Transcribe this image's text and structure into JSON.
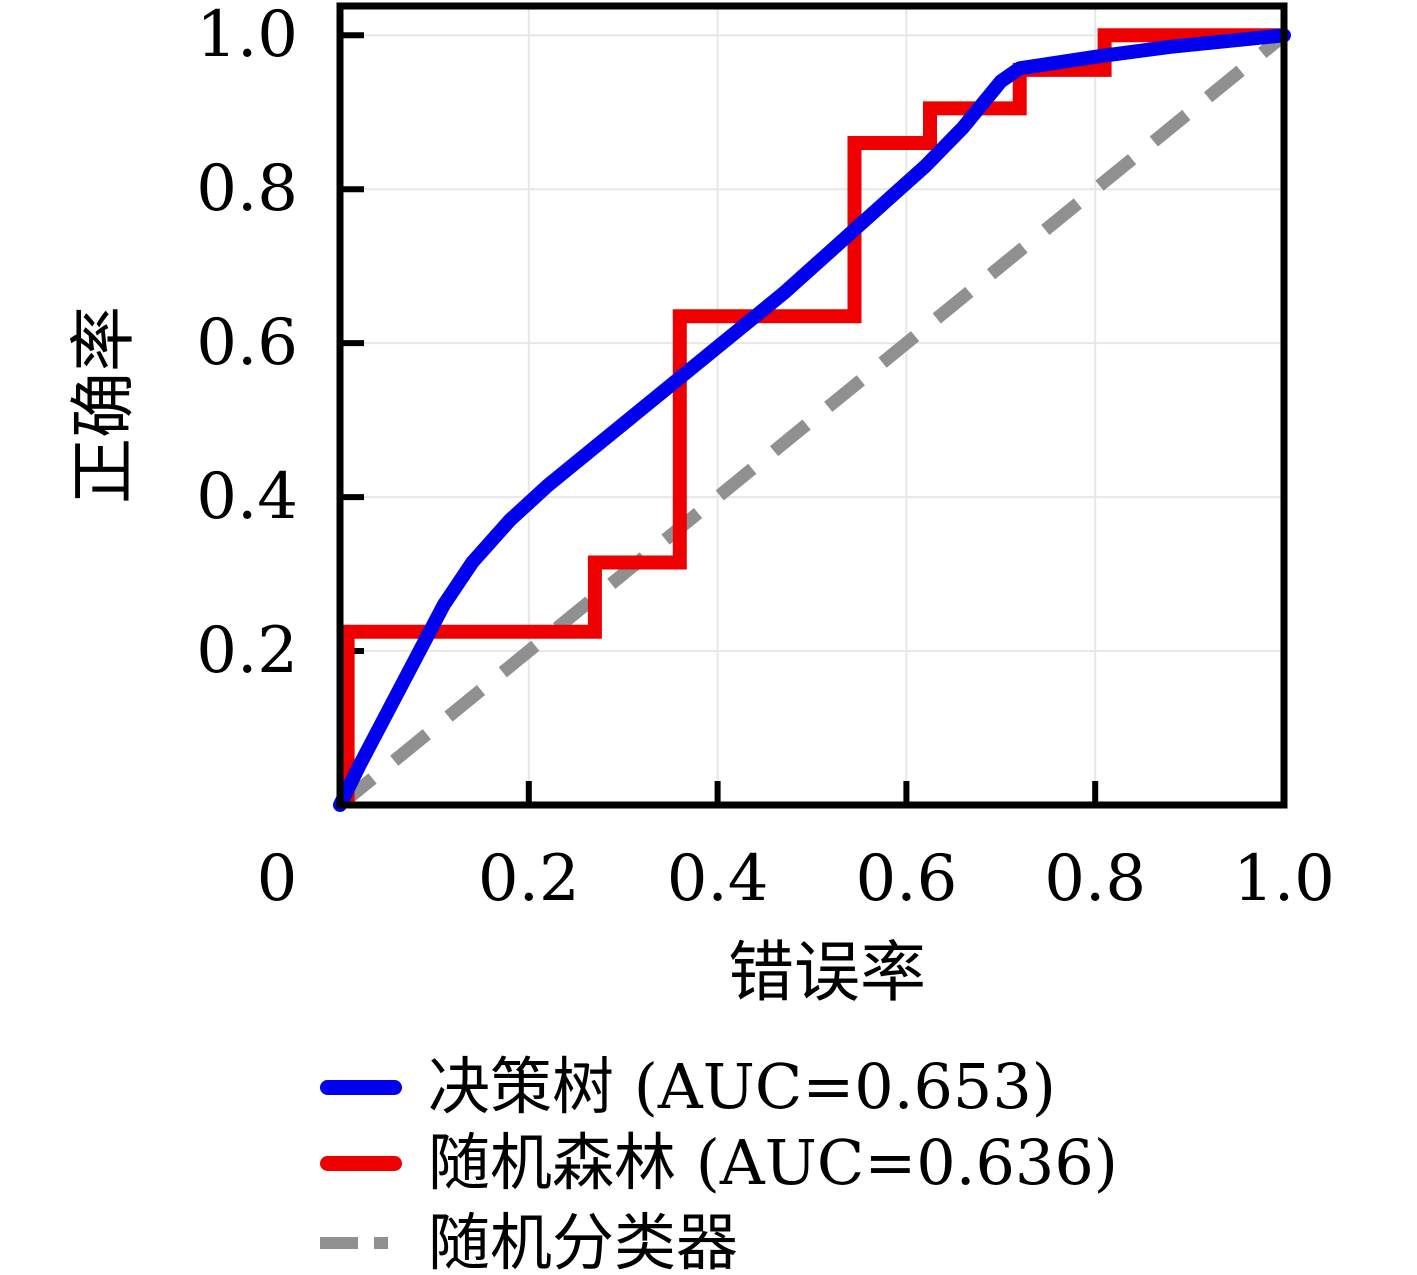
{
  "figure": {
    "background": "#ffffff",
    "axis_color": "#000000",
    "grid_color": "#e7e7e7",
    "text_color": "#000000"
  },
  "chart_data": {
    "type": "line",
    "title": "",
    "xlabel": "错误率",
    "ylabel": "正确率",
    "xlim": [
      0,
      1.0
    ],
    "ylim": [
      0,
      1.038
    ],
    "grid": true,
    "legend_position": "below-left",
    "x_ticks": [
      {
        "label": "0",
        "value": 0,
        "dx": -63
      },
      {
        "label": "0.2",
        "value": 0.2,
        "dx": 0
      },
      {
        "label": "0.4",
        "value": 0.4,
        "dx": 0
      },
      {
        "label": "0.6",
        "value": 0.6,
        "dx": 0
      },
      {
        "label": "0.8",
        "value": 0.8,
        "dx": 0
      },
      {
        "label": "1.0",
        "value": 1.0,
        "dx": 0
      }
    ],
    "y_ticks": [
      {
        "label": "0.2",
        "value": 0.2
      },
      {
        "label": "0.4",
        "value": 0.4
      },
      {
        "label": "0.6",
        "value": 0.6
      },
      {
        "label": "0.8",
        "value": 0.8
      },
      {
        "label": "1.0",
        "value": 1.0
      }
    ],
    "series": [
      {
        "id": "decision-tree",
        "label": "决策树 (AUC=0.653)",
        "auc": "0.653",
        "color": "#0000ee",
        "line_style": "solid",
        "shape": "smooth",
        "points": [
          [
            0,
            0
          ],
          [
            0.02,
            0.05
          ],
          [
            0.05,
            0.12
          ],
          [
            0.08,
            0.19
          ],
          [
            0.11,
            0.26
          ],
          [
            0.14,
            0.315
          ],
          [
            0.18,
            0.37
          ],
          [
            0.22,
            0.415
          ],
          [
            0.27,
            0.465
          ],
          [
            0.32,
            0.515
          ],
          [
            0.37,
            0.565
          ],
          [
            0.42,
            0.615
          ],
          [
            0.47,
            0.665
          ],
          [
            0.52,
            0.72
          ],
          [
            0.57,
            0.775
          ],
          [
            0.62,
            0.83
          ],
          [
            0.66,
            0.88
          ],
          [
            0.7,
            0.94
          ],
          [
            0.72,
            0.957
          ],
          [
            0.8,
            0.972
          ],
          [
            0.88,
            0.985
          ],
          [
            1.0,
            1.0
          ]
        ]
      },
      {
        "id": "random-forest",
        "label": "随机森林 (AUC=0.636)",
        "auc": "0.636",
        "color": "#ee0000",
        "line_style": "solid",
        "shape": "step",
        "points": [
          [
            0.008,
            0
          ],
          [
            0.008,
            0.225
          ],
          [
            0.27,
            0.225
          ],
          [
            0.27,
            0.315
          ],
          [
            0.36,
            0.315
          ],
          [
            0.36,
            0.635
          ],
          [
            0.545,
            0.635
          ],
          [
            0.545,
            0.86
          ],
          [
            0.625,
            0.86
          ],
          [
            0.625,
            0.905
          ],
          [
            0.72,
            0.905
          ],
          [
            0.72,
            0.955
          ],
          [
            0.81,
            0.955
          ],
          [
            0.81,
            1.0
          ],
          [
            1.0,
            1.0
          ]
        ]
      },
      {
        "id": "random-classifier",
        "label": "随机分类器",
        "auc": null,
        "color": "#909090",
        "line_style": "dashed",
        "shape": "straight",
        "points": [
          [
            0,
            0
          ],
          [
            1,
            1
          ]
        ]
      }
    ]
  }
}
